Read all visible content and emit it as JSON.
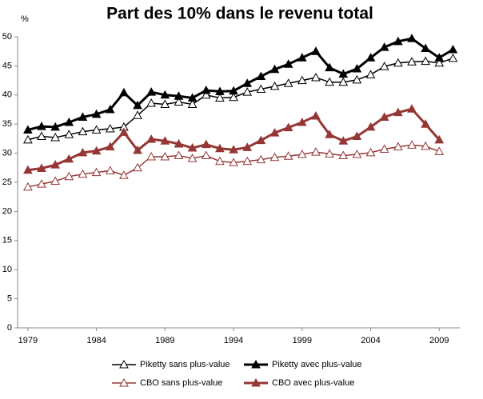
{
  "chart_data": {
    "type": "line",
    "title": "Part des 10% dans le revenu total",
    "y_label": "%",
    "x": [
      1979,
      1980,
      1981,
      1982,
      1983,
      1984,
      1985,
      1986,
      1987,
      1988,
      1989,
      1990,
      1991,
      1992,
      1993,
      1994,
      1995,
      1996,
      1997,
      1998,
      1999,
      2000,
      2001,
      2002,
      2003,
      2004,
      2005,
      2006,
      2007,
      2008,
      2009,
      2010
    ],
    "series": [
      {
        "name": "Piketty sans plus-value",
        "color": "#000000",
        "filled": false,
        "values": [
          32.3,
          32.9,
          32.7,
          33.2,
          33.7,
          34.0,
          34.2,
          34.5,
          36.5,
          38.6,
          38.4,
          38.8,
          38.4,
          40.0,
          39.5,
          39.6,
          40.5,
          41.0,
          41.5,
          42.0,
          42.5,
          43.0,
          42.2,
          42.2,
          42.6,
          43.5,
          44.9,
          45.5,
          45.7,
          45.8,
          45.5,
          46.3
        ]
      },
      {
        "name": "Piketty avec plus-value",
        "color": "#000000",
        "filled": true,
        "values": [
          34.0,
          34.6,
          34.5,
          35.3,
          36.2,
          36.7,
          37.5,
          40.4,
          38.2,
          40.5,
          40.0,
          39.8,
          39.5,
          40.8,
          40.6,
          40.7,
          42.0,
          43.2,
          44.4,
          45.3,
          46.4,
          47.5,
          44.7,
          43.6,
          44.5,
          46.4,
          48.2,
          49.2,
          49.7,
          48.0,
          46.4,
          47.8
        ]
      },
      {
        "name": "CBO sans plus-value",
        "color": "#953735",
        "filled": false,
        "values": [
          24.2,
          24.7,
          25.2,
          26.0,
          26.4,
          26.7,
          27.0,
          26.2,
          27.5,
          29.4,
          29.4,
          29.6,
          29.1,
          29.6,
          28.6,
          28.4,
          28.6,
          28.9,
          29.3,
          29.5,
          29.8,
          30.2,
          29.9,
          29.6,
          29.8,
          30.1,
          30.7,
          31.1,
          31.4,
          31.2,
          30.3,
          null
        ]
      },
      {
        "name": "CBO avec plus-value",
        "color": "#953735",
        "filled": true,
        "values": [
          27.1,
          27.4,
          28.0,
          29.0,
          30.1,
          30.4,
          31.1,
          33.6,
          30.5,
          32.4,
          32.1,
          31.6,
          30.9,
          31.5,
          30.8,
          30.6,
          31.0,
          32.2,
          33.5,
          34.4,
          35.3,
          36.4,
          33.2,
          32.1,
          32.9,
          34.5,
          36.2,
          37.0,
          37.6,
          35.0,
          32.3,
          null
        ]
      }
    ],
    "xlim": [
      1978.25,
      2010.5
    ],
    "xticks": [
      1979,
      1984,
      1989,
      1994,
      1999,
      2004,
      2009
    ],
    "ylim": [
      0,
      50
    ],
    "yticks": [
      0,
      5,
      10,
      15,
      20,
      25,
      30,
      35,
      40,
      45,
      50
    ],
    "grid": false,
    "legend": "bottom"
  }
}
